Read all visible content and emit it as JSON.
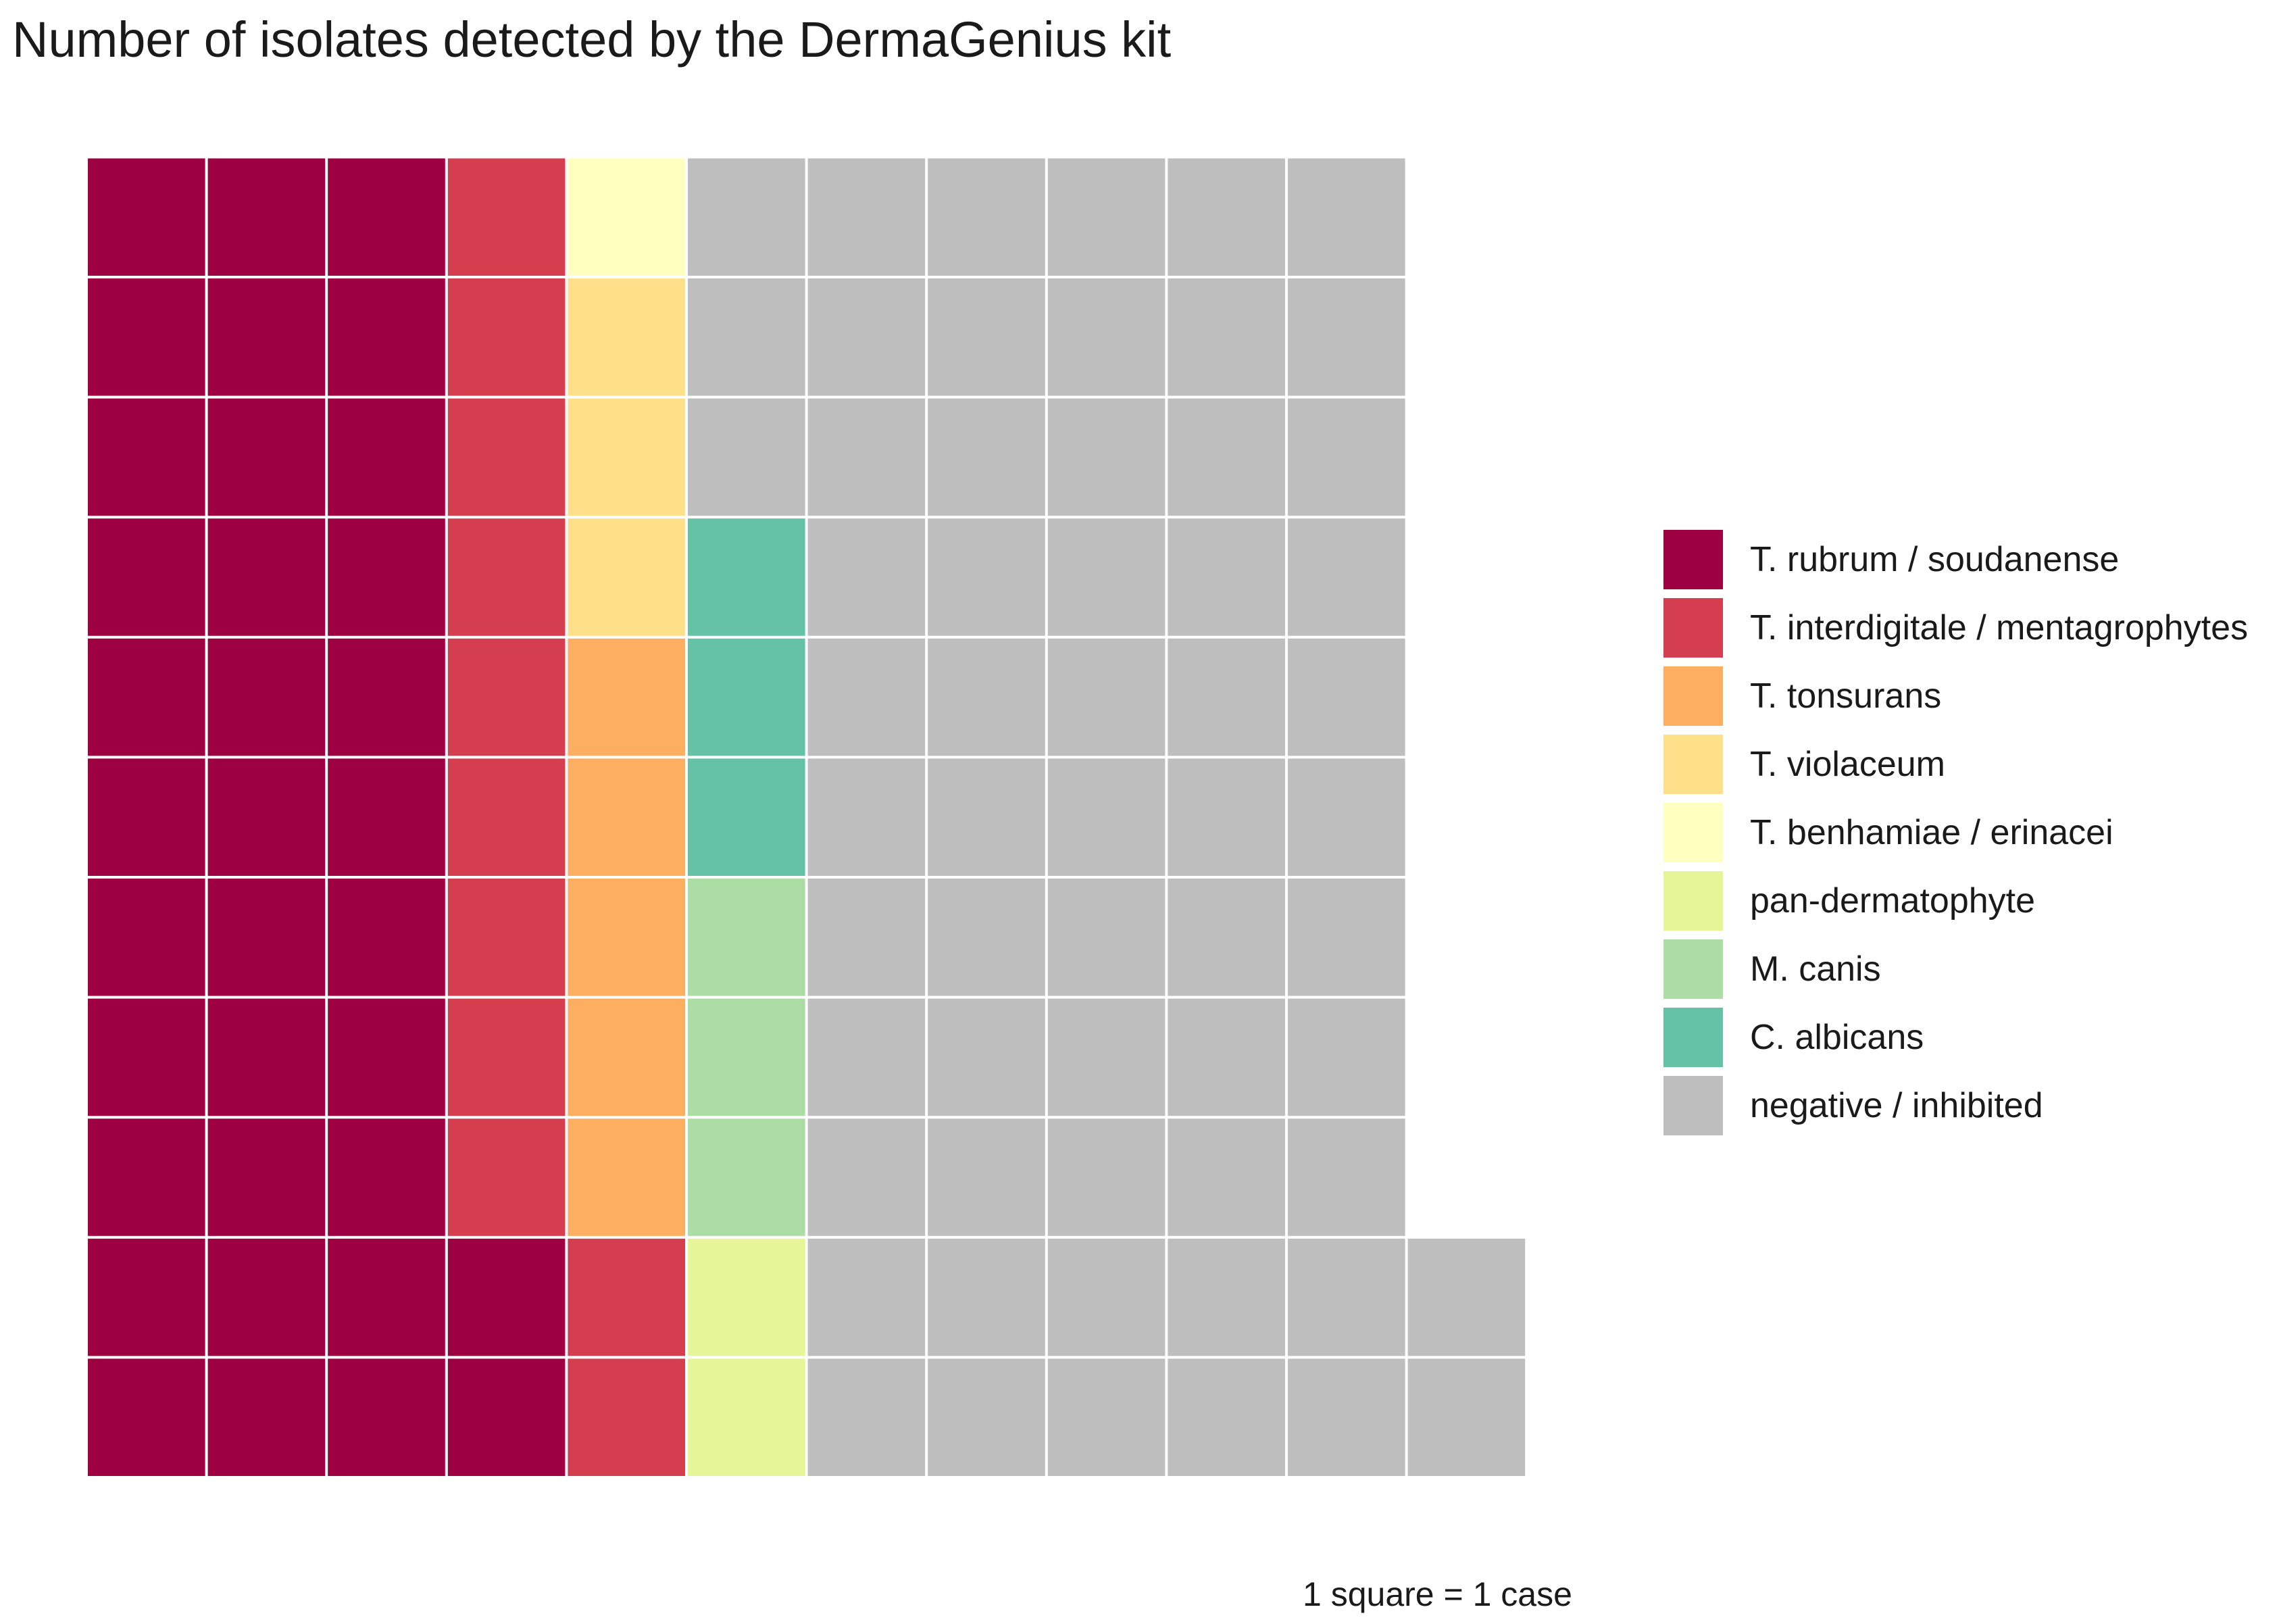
{
  "chart_data": {
    "type": "waffle",
    "title": "Number of isolates detected by the DermaGenius kit",
    "caption": "1 square = 1 case",
    "legend_position": "right",
    "grid_rows": 11,
    "fill_order": "column-wise, bottom to top, left to right",
    "categories": [
      {
        "name": "T. rubrum / soudanense",
        "count": 35,
        "color": "#9E0142"
      },
      {
        "name": "T. interdigitale / mentagrophytes",
        "count": 11,
        "color": "#D53E4F"
      },
      {
        "name": "T. tonsurans",
        "count": 5,
        "color": "#FDAE61"
      },
      {
        "name": "T. violaceum",
        "count": 3,
        "color": "#FEE08B"
      },
      {
        "name": "T. benhamiae / erinacei",
        "count": 1,
        "color": "#FFFFBF"
      },
      {
        "name": "pan-dermatophyte",
        "count": 2,
        "color": "#E6F598"
      },
      {
        "name": "M. canis",
        "count": 3,
        "color": "#ABDDA4"
      },
      {
        "name": "C. albicans",
        "count": 3,
        "color": "#66C2A5"
      },
      {
        "name": "negative / inhibited",
        "count": 60,
        "color": "#BEBEBE"
      }
    ]
  }
}
